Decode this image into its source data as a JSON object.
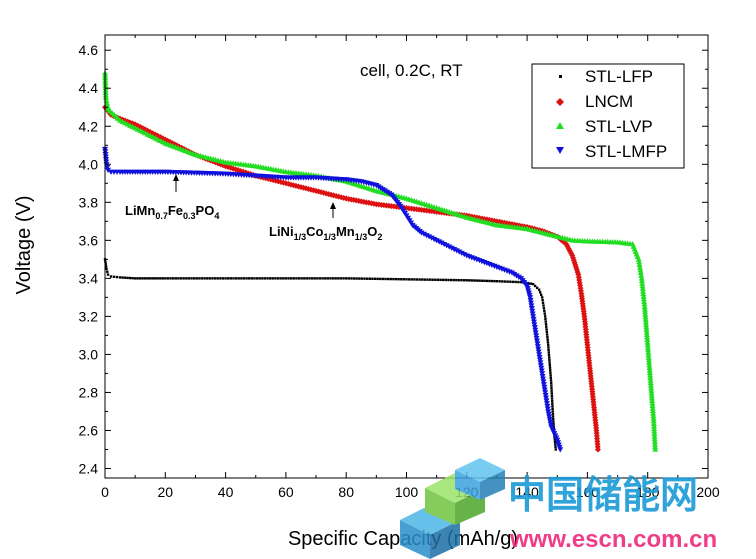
{
  "chart_data": {
    "type": "scatter",
    "title": "",
    "condition_text": "cell, 0.2C, RT",
    "xlabel": "Specific Capacity (mAh/g)",
    "ylabel": "Voltage (V)",
    "xlim": [
      0,
      200
    ],
    "ylim": [
      2.35,
      4.68
    ],
    "x_ticks": [
      "0",
      "20",
      "40",
      "60",
      "80",
      "100",
      "120",
      "140",
      "160",
      "180",
      "200"
    ],
    "y_ticks": [
      "2.4",
      "2.6",
      "2.8",
      "3.0",
      "3.2",
      "3.4",
      "3.6",
      "3.8",
      "4.0",
      "4.2",
      "4.4",
      "4.6"
    ],
    "legend_position": "top-right",
    "series": [
      {
        "name": "STL-LFP",
        "color": "#000000",
        "marker": "square",
        "points": [
          [
            0,
            3.5
          ],
          [
            0.5,
            3.45
          ],
          [
            1,
            3.42
          ],
          [
            2,
            3.41
          ],
          [
            5,
            3.405
          ],
          [
            10,
            3.4
          ],
          [
            20,
            3.4
          ],
          [
            40,
            3.4
          ],
          [
            60,
            3.4
          ],
          [
            80,
            3.4
          ],
          [
            100,
            3.395
          ],
          [
            120,
            3.39
          ],
          [
            130,
            3.385
          ],
          [
            138,
            3.38
          ],
          [
            142,
            3.37
          ],
          [
            144,
            3.34
          ],
          [
            145,
            3.3
          ],
          [
            146,
            3.2
          ],
          [
            147,
            3.05
          ],
          [
            148,
            2.85
          ],
          [
            148.5,
            2.7
          ],
          [
            149,
            2.58
          ],
          [
            149.5,
            2.5
          ]
        ]
      },
      {
        "name": "LNCM",
        "color": "#dd1111",
        "marker": "diamond",
        "points": [
          [
            0,
            4.3
          ],
          [
            2,
            4.26
          ],
          [
            5,
            4.24
          ],
          [
            10,
            4.21
          ],
          [
            15,
            4.17
          ],
          [
            20,
            4.13
          ],
          [
            30,
            4.05
          ],
          [
            40,
            3.99
          ],
          [
            50,
            3.94
          ],
          [
            60,
            3.9
          ],
          [
            70,
            3.86
          ],
          [
            80,
            3.82
          ],
          [
            90,
            3.79
          ],
          [
            100,
            3.77
          ],
          [
            110,
            3.75
          ],
          [
            120,
            3.73
          ],
          [
            130,
            3.7
          ],
          [
            140,
            3.67
          ],
          [
            145,
            3.65
          ],
          [
            150,
            3.62
          ],
          [
            153,
            3.58
          ],
          [
            155,
            3.52
          ],
          [
            157,
            3.42
          ],
          [
            158,
            3.32
          ],
          [
            159,
            3.2
          ],
          [
            160,
            3.05
          ],
          [
            161,
            2.9
          ],
          [
            162,
            2.75
          ],
          [
            163,
            2.6
          ],
          [
            163.5,
            2.5
          ]
        ]
      },
      {
        "name": "STL-LVP",
        "color": "#22dd22",
        "marker": "triangle-up",
        "points": [
          [
            0,
            4.48
          ],
          [
            0.3,
            4.35
          ],
          [
            1,
            4.29
          ],
          [
            3,
            4.26
          ],
          [
            5,
            4.23
          ],
          [
            10,
            4.19
          ],
          [
            15,
            4.15
          ],
          [
            20,
            4.11
          ],
          [
            25,
            4.08
          ],
          [
            30,
            4.05
          ],
          [
            40,
            4.01
          ],
          [
            50,
            3.99
          ],
          [
            60,
            3.96
          ],
          [
            70,
            3.94
          ],
          [
            80,
            3.91
          ],
          [
            90,
            3.86
          ],
          [
            100,
            3.82
          ],
          [
            110,
            3.77
          ],
          [
            120,
            3.72
          ],
          [
            130,
            3.68
          ],
          [
            140,
            3.66
          ],
          [
            150,
            3.62
          ],
          [
            155,
            3.6
          ],
          [
            160,
            3.595
          ],
          [
            170,
            3.59
          ],
          [
            175,
            3.58
          ],
          [
            177,
            3.5
          ],
          [
            178,
            3.4
          ],
          [
            179,
            3.25
          ],
          [
            180,
            3.05
          ],
          [
            181,
            2.85
          ],
          [
            182,
            2.65
          ],
          [
            182.5,
            2.5
          ]
        ]
      },
      {
        "name": "STL-LMFP",
        "color": "#1111dd",
        "marker": "triangle-down",
        "points": [
          [
            0,
            4.08
          ],
          [
            0.5,
            4.0
          ],
          [
            1,
            3.97
          ],
          [
            2,
            3.96
          ],
          [
            5,
            3.96
          ],
          [
            10,
            3.96
          ],
          [
            20,
            3.96
          ],
          [
            40,
            3.95
          ],
          [
            60,
            3.93
          ],
          [
            70,
            3.93
          ],
          [
            80,
            3.92
          ],
          [
            85,
            3.91
          ],
          [
            90,
            3.89
          ],
          [
            95,
            3.84
          ],
          [
            98,
            3.78
          ],
          [
            100,
            3.73
          ],
          [
            102,
            3.68
          ],
          [
            105,
            3.64
          ],
          [
            110,
            3.6
          ],
          [
            115,
            3.56
          ],
          [
            120,
            3.52
          ],
          [
            125,
            3.49
          ],
          [
            130,
            3.46
          ],
          [
            135,
            3.43
          ],
          [
            138,
            3.4
          ],
          [
            140,
            3.36
          ],
          [
            141,
            3.3
          ],
          [
            142,
            3.2
          ],
          [
            143,
            3.1
          ],
          [
            144,
            3.0
          ],
          [
            145,
            2.9
          ],
          [
            146,
            2.8
          ],
          [
            147,
            2.7
          ],
          [
            148,
            2.62
          ],
          [
            150,
            2.55
          ],
          [
            151,
            2.5
          ]
        ]
      }
    ],
    "annotations": [
      {
        "id": "lmfp",
        "text_base": "LiMn",
        "sub1": "0.7",
        "text_mid1": "Fe",
        "sub2": "0.3",
        "text_mid2": "PO",
        "sub3": "4",
        "arrow_x": 24,
        "arrow_y": 3.96
      },
      {
        "id": "lncm",
        "text_base": "LiNi",
        "sub1": "1/3",
        "text_mid1": "Co",
        "sub2": "1/3",
        "text_mid2": "Mn",
        "sub3": "1/3",
        "text_mid3": "O",
        "sub4": "2",
        "arrow_x": 76,
        "arrow_y": 3.81
      }
    ]
  },
  "watermark": {
    "chinese": "中国储能网",
    "url": "www.escn.com.cn"
  }
}
